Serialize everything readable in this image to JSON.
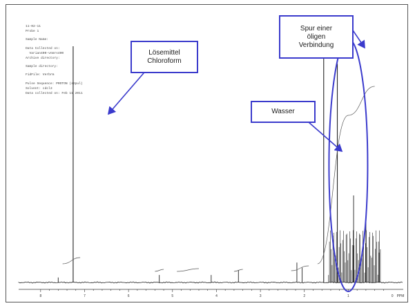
{
  "chart_data": {
    "type": "line",
    "xlabel": "ppm",
    "x_reversed": true,
    "xlim": [
      8.5,
      -0.25
    ],
    "x_ticks": [
      8,
      7,
      6,
      5,
      4,
      3,
      2,
      1,
      0
    ],
    "unit": "PPM",
    "series": [
      {
        "peaks": [
          {
            "ppm": 7.26,
            "height": 0.95
          },
          {
            "ppm": 1.56,
            "height": 0.93
          },
          {
            "ppm": 1.25,
            "height": 0.88
          },
          {
            "ppm": 0.88,
            "height": 0.35
          },
          {
            "ppm": 0.6,
            "height": 0.25
          },
          {
            "ppm": 0.3,
            "height": 0.12
          },
          {
            "ppm": 2.17,
            "height": 0.08
          },
          {
            "ppm": 2.05,
            "height": 0.06
          },
          {
            "ppm": 5.3,
            "height": 0.03
          },
          {
            "ppm": 4.12,
            "height": 0.03
          },
          {
            "ppm": 3.5,
            "height": 0.05
          },
          {
            "ppm": 7.6,
            "height": 0.02
          }
        ]
      }
    ],
    "annotations": [
      {
        "id": "solvent",
        "lines": [
          "Lösemittel",
          "Chloroform"
        ],
        "arrow_to_ppm": 7.26
      },
      {
        "id": "water",
        "lines": [
          "Wasser"
        ],
        "arrow_to_ppm": 1.56
      },
      {
        "id": "oily",
        "lines": [
          "Spur einer",
          "öligen",
          "Verbindung"
        ],
        "arrow_to_ppm": 1.2
      }
    ],
    "annotation_color": "#3a3acc",
    "line_color": "#222222"
  },
  "header": {
    "lines": [
      "11-02-11",
      "Probe 1",
      "",
      "Sample Name:",
      "",
      "Data Collected on:",
      "  Varian400-vnmrs400",
      "Archive directory:",
      "",
      "Sample directory:",
      "",
      "FidFile: Verbrm",
      "",
      "Pulse Sequence: PROTON (s2pul)",
      "Solvent: cdcl3",
      "Data collected on: Feb 11 2011"
    ]
  }
}
